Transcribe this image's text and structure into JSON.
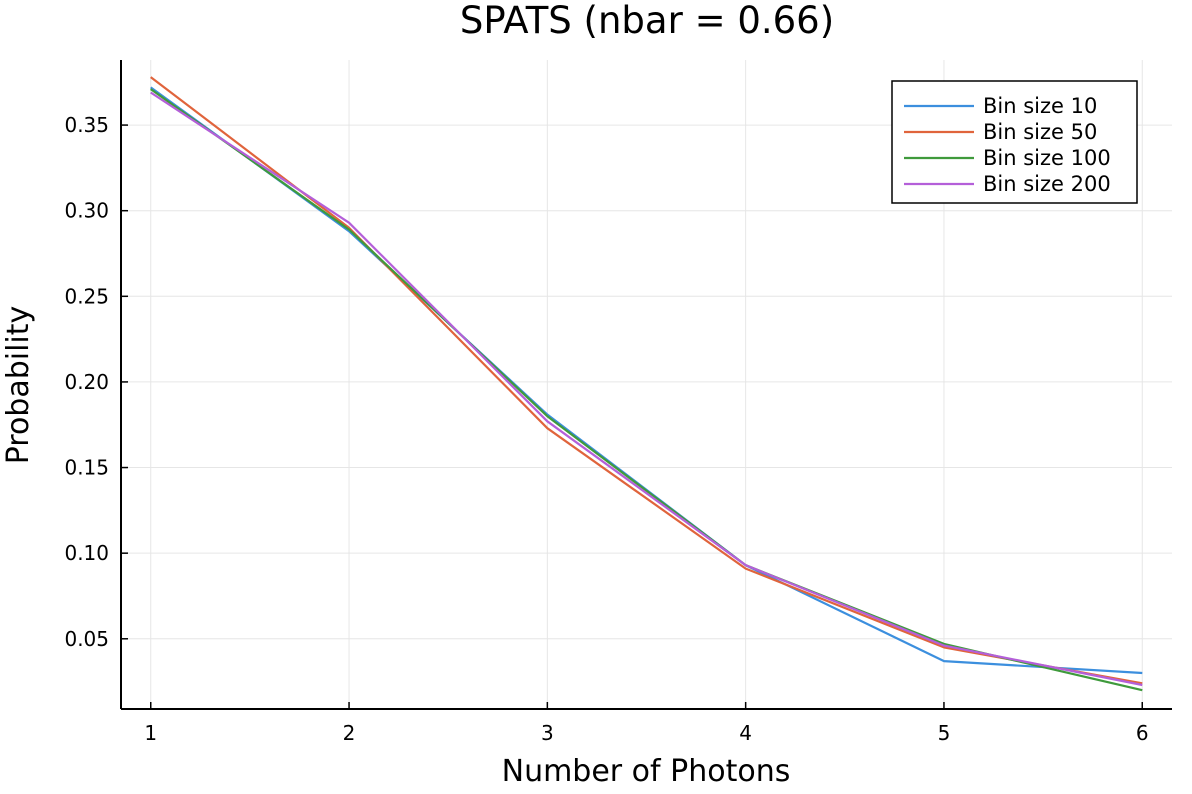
{
  "chart_data": {
    "type": "line",
    "title": "SPATS (nbar = 0.66)",
    "xlabel": "Number of Photons",
    "ylabel": "Probability",
    "x": [
      1,
      2,
      3,
      4,
      5,
      6
    ],
    "xticks": [
      "1",
      "2",
      "3",
      "4",
      "5",
      "6"
    ],
    "xlim": [
      0.85,
      6.15
    ],
    "yticks": [
      "0.05",
      "0.10",
      "0.15",
      "0.20",
      "0.25",
      "0.30",
      "0.35"
    ],
    "ylim": [
      0.009,
      0.388
    ],
    "grid": true,
    "legend_position": "top-right",
    "series": [
      {
        "name": "Bin size 10",
        "color": "#3c8fde",
        "values": [
          0.372,
          0.288,
          0.181,
          0.093,
          0.037,
          0.03
        ]
      },
      {
        "name": "Bin size 50",
        "color": "#e0643c",
        "values": [
          0.378,
          0.29,
          0.173,
          0.091,
          0.045,
          0.024
        ]
      },
      {
        "name": "Bin size 100",
        "color": "#3f9a3c",
        "values": [
          0.371,
          0.289,
          0.18,
          0.093,
          0.047,
          0.02
        ]
      },
      {
        "name": "Bin size 200",
        "color": "#b45fd9",
        "values": [
          0.369,
          0.293,
          0.177,
          0.093,
          0.046,
          0.023
        ]
      }
    ]
  }
}
